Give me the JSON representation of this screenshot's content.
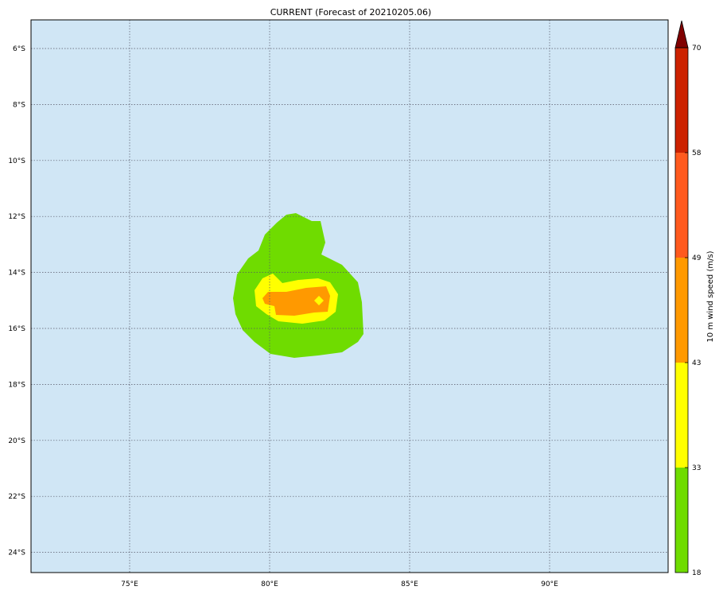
{
  "title": "CURRENT (Forecast of 20210205.06)",
  "map": {
    "ocean_color": "#d0e6f5",
    "lon_ticks": [
      {
        "value": 75,
        "label": "75°E"
      },
      {
        "value": 80,
        "label": "80°E"
      },
      {
        "value": 85,
        "label": "85°E"
      },
      {
        "value": 90,
        "label": "90°E"
      }
    ],
    "lat_ticks": [
      {
        "value": -6,
        "label": "6°S"
      },
      {
        "value": -8,
        "label": "8°S"
      },
      {
        "value": -10,
        "label": "10°S"
      },
      {
        "value": -12,
        "label": "12°S"
      },
      {
        "value": -14,
        "label": "14°S"
      },
      {
        "value": -16,
        "label": "16°S"
      },
      {
        "value": -18,
        "label": "18°S"
      },
      {
        "value": -20,
        "label": "20°S"
      },
      {
        "value": -22,
        "label": "22°S"
      },
      {
        "value": -24,
        "label": "24°S"
      }
    ]
  },
  "colorbar": {
    "label": "10 m wind speed (m/s)",
    "levels": [
      "18",
      "33",
      "43",
      "49",
      "58",
      "70"
    ],
    "colors": [
      "#6fdc00",
      "#ffff00",
      "#ff9900",
      "#ff5a1e",
      "#cc2200"
    ],
    "extend_color": "#800000",
    "extend": "max"
  }
}
